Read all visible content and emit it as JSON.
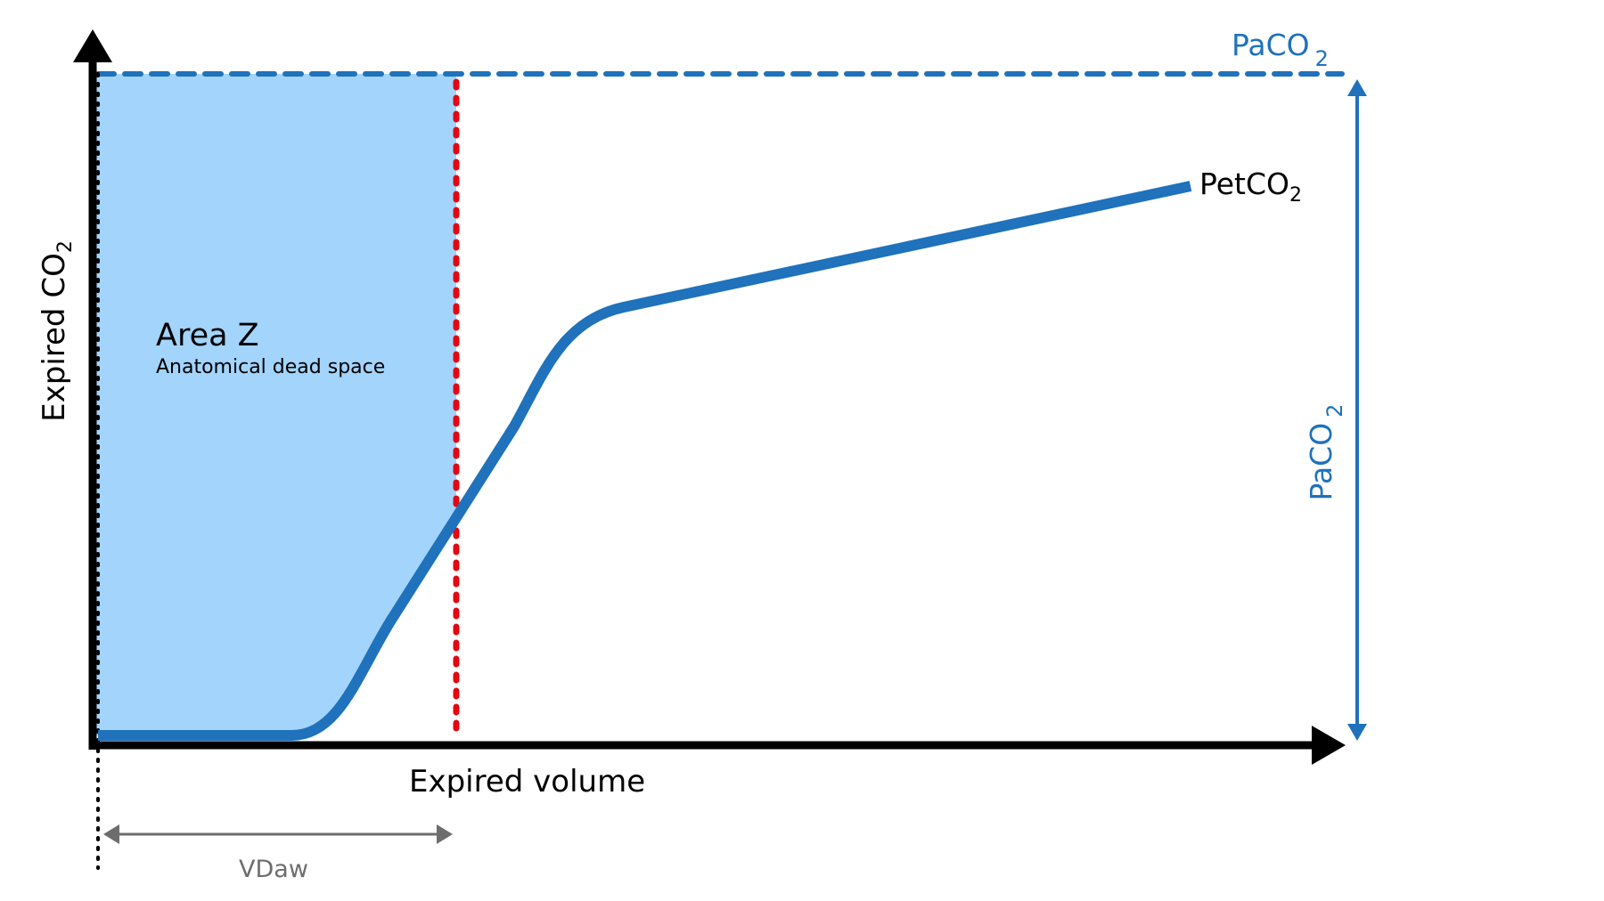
{
  "labels": {
    "y_axis": "Expired CO",
    "y_axis_sub": "2",
    "x_axis": "Expired volume",
    "area_title": "Area Z",
    "area_subtitle": "Anatomical dead space",
    "petco2": "PetCO",
    "petco2_sub": "2",
    "paco2_top": "PaCO",
    "paco2_top_sub": "2",
    "paco2_side": "PaCO",
    "paco2_side_sub": "2",
    "vdaw": "VDaw"
  },
  "colors": {
    "curve": "#1f72bb",
    "area_fill": "#a3d4fc",
    "dead_space_line": "#e30613",
    "paco2": "#1f72bb",
    "axes": "#000000",
    "vdaw": "#6d6d6d"
  }
}
